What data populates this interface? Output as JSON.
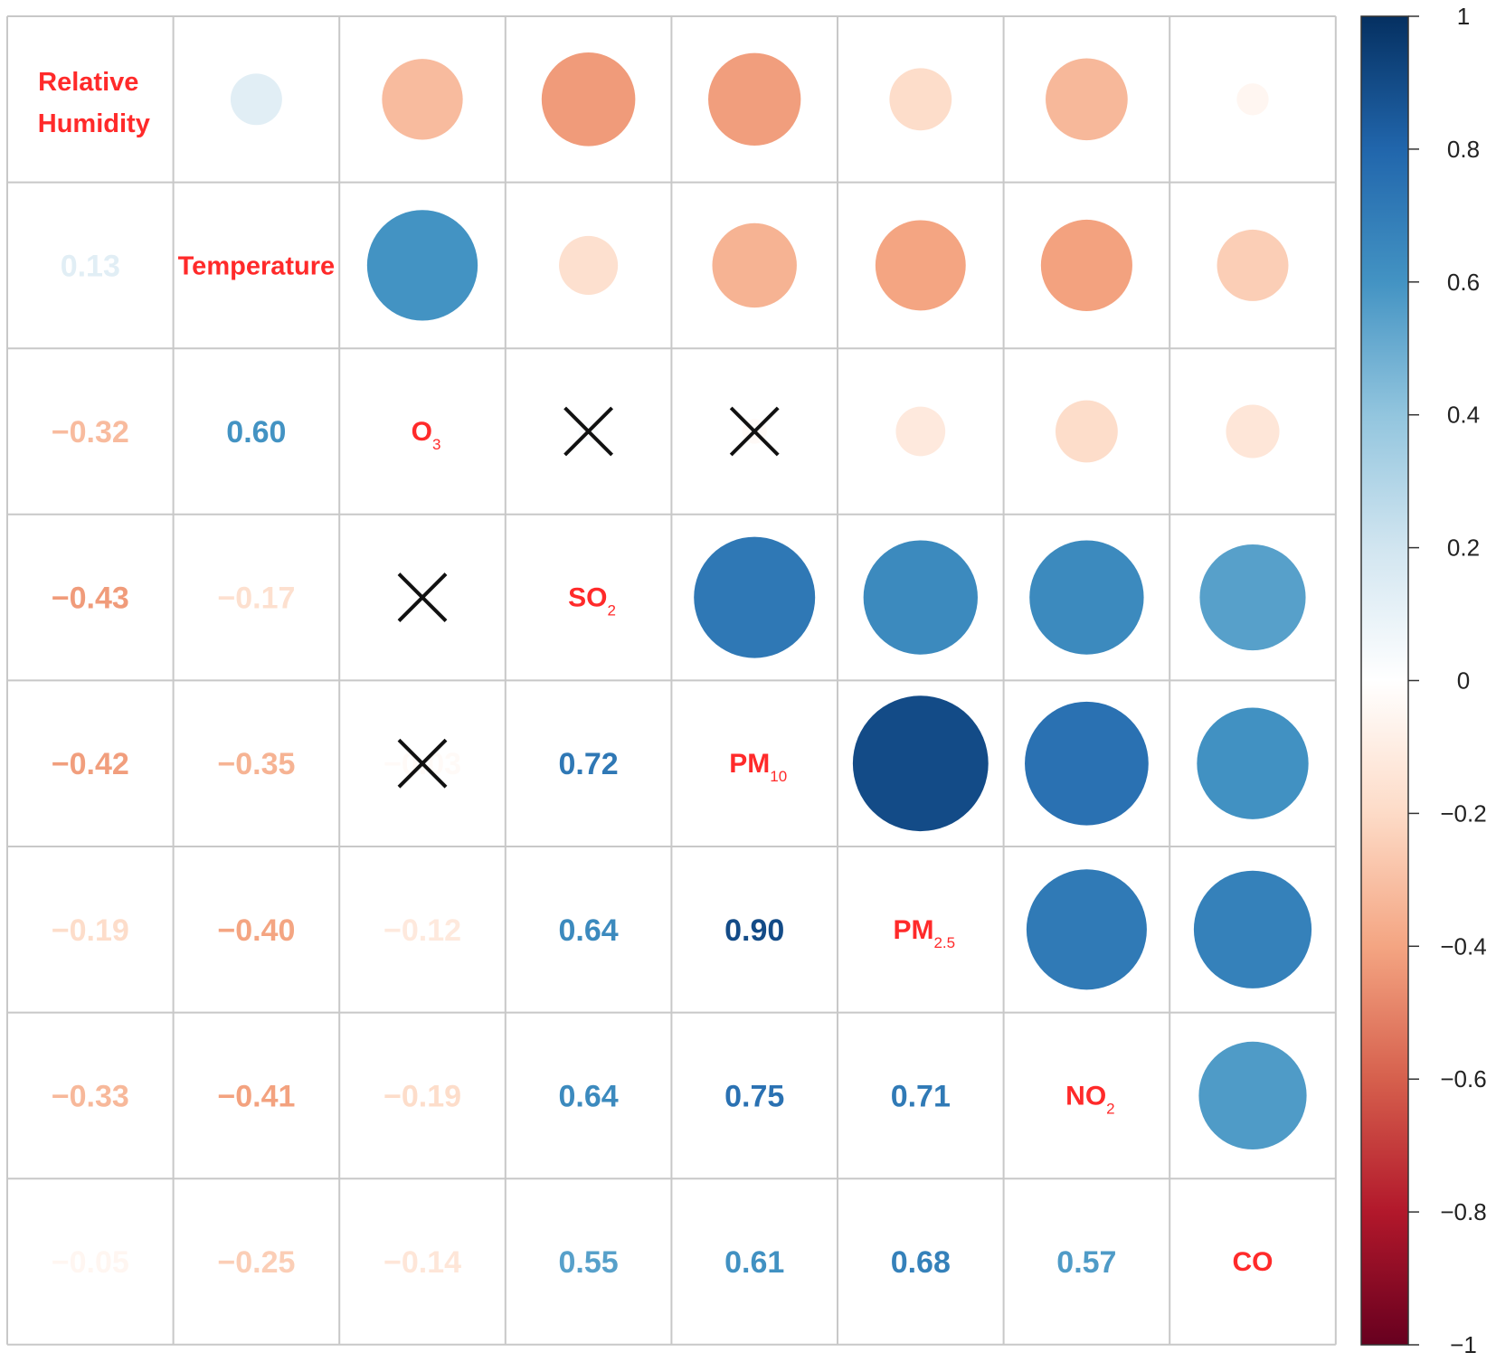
{
  "chart_data": {
    "type": "heatmap",
    "title": "",
    "variables": [
      {
        "base": "Relative",
        "line2": "Humidity",
        "sub": ""
      },
      {
        "base": "Temperature",
        "line2": "",
        "sub": ""
      },
      {
        "base": "O",
        "line2": "",
        "sub": "3"
      },
      {
        "base": "SO",
        "line2": "",
        "sub": "2"
      },
      {
        "base": "PM",
        "line2": "",
        "sub": "10"
      },
      {
        "base": "PM",
        "line2": "",
        "sub": "2.5"
      },
      {
        "base": "NO",
        "line2": "",
        "sub": "2"
      },
      {
        "base": "CO",
        "line2": "",
        "sub": ""
      }
    ],
    "matrix": [
      [
        1.0,
        0.13,
        -0.32,
        -0.43,
        -0.42,
        -0.19,
        -0.33,
        -0.05
      ],
      [
        0.13,
        1.0,
        0.6,
        -0.17,
        -0.35,
        -0.4,
        -0.41,
        -0.25
      ],
      [
        -0.32,
        0.6,
        1.0,
        0.02,
        -0.03,
        -0.12,
        -0.19,
        -0.14
      ],
      [
        -0.43,
        -0.17,
        0.02,
        1.0,
        0.72,
        0.64,
        0.64,
        0.55
      ],
      [
        -0.42,
        -0.35,
        -0.03,
        0.72,
        1.0,
        0.9,
        0.75,
        0.61
      ],
      [
        -0.19,
        -0.4,
        -0.12,
        0.64,
        0.9,
        1.0,
        0.71,
        0.68
      ],
      [
        -0.33,
        -0.41,
        -0.19,
        0.64,
        0.75,
        0.71,
        1.0,
        0.57
      ],
      [
        -0.05,
        -0.25,
        -0.14,
        0.55,
        0.61,
        0.68,
        0.57,
        1.0
      ]
    ],
    "labels_lower": [
      [
        "",
        "",
        "",
        "",
        "",
        "",
        "",
        ""
      ],
      [
        "0.13",
        "",
        "",
        "",
        "",
        "",
        "",
        ""
      ],
      [
        "−0.32",
        "0.60",
        "",
        "",
        "",
        "",
        "",
        ""
      ],
      [
        "−0.43",
        "−0.17",
        "",
        "",
        "",
        "",
        "",
        ""
      ],
      [
        "−0.42",
        "−0.35",
        "−0.03",
        "0.72",
        "",
        "",
        "",
        ""
      ],
      [
        "−0.19",
        "−0.40",
        "−0.12",
        "0.64",
        "0.90",
        "",
        "",
        ""
      ],
      [
        "−0.33",
        "−0.41",
        "−0.19",
        "0.64",
        "0.75",
        "0.71",
        "",
        ""
      ],
      [
        "−0.05",
        "−0.25",
        "−0.14",
        "0.55",
        "0.61",
        "0.68",
        "0.57",
        ""
      ]
    ],
    "insignificant": [
      [
        2,
        3
      ],
      [
        2,
        4
      ],
      [
        3,
        2
      ],
      [
        4,
        2
      ]
    ],
    "upper_glyph": "circle",
    "lower_glyph": "number",
    "colorbar": {
      "range": [
        -1,
        1
      ],
      "ticks": [
        "1",
        "0.8",
        "0.6",
        "0.4",
        "0.2",
        "0",
        "−0.2",
        "−0.4",
        "−0.6",
        "−0.8",
        "−1"
      ],
      "tick_values": [
        1,
        0.8,
        0.6,
        0.4,
        0.2,
        0,
        -0.2,
        -0.4,
        -0.6,
        -0.8,
        -1
      ],
      "stops": [
        "#67001f",
        "#b2182b",
        "#d6604d",
        "#f4a582",
        "#fddbc7",
        "#ffffff",
        "#d1e5f0",
        "#92c5de",
        "#4393c3",
        "#2166ac",
        "#053061"
      ]
    },
    "grid": true,
    "legend_position": "right"
  }
}
